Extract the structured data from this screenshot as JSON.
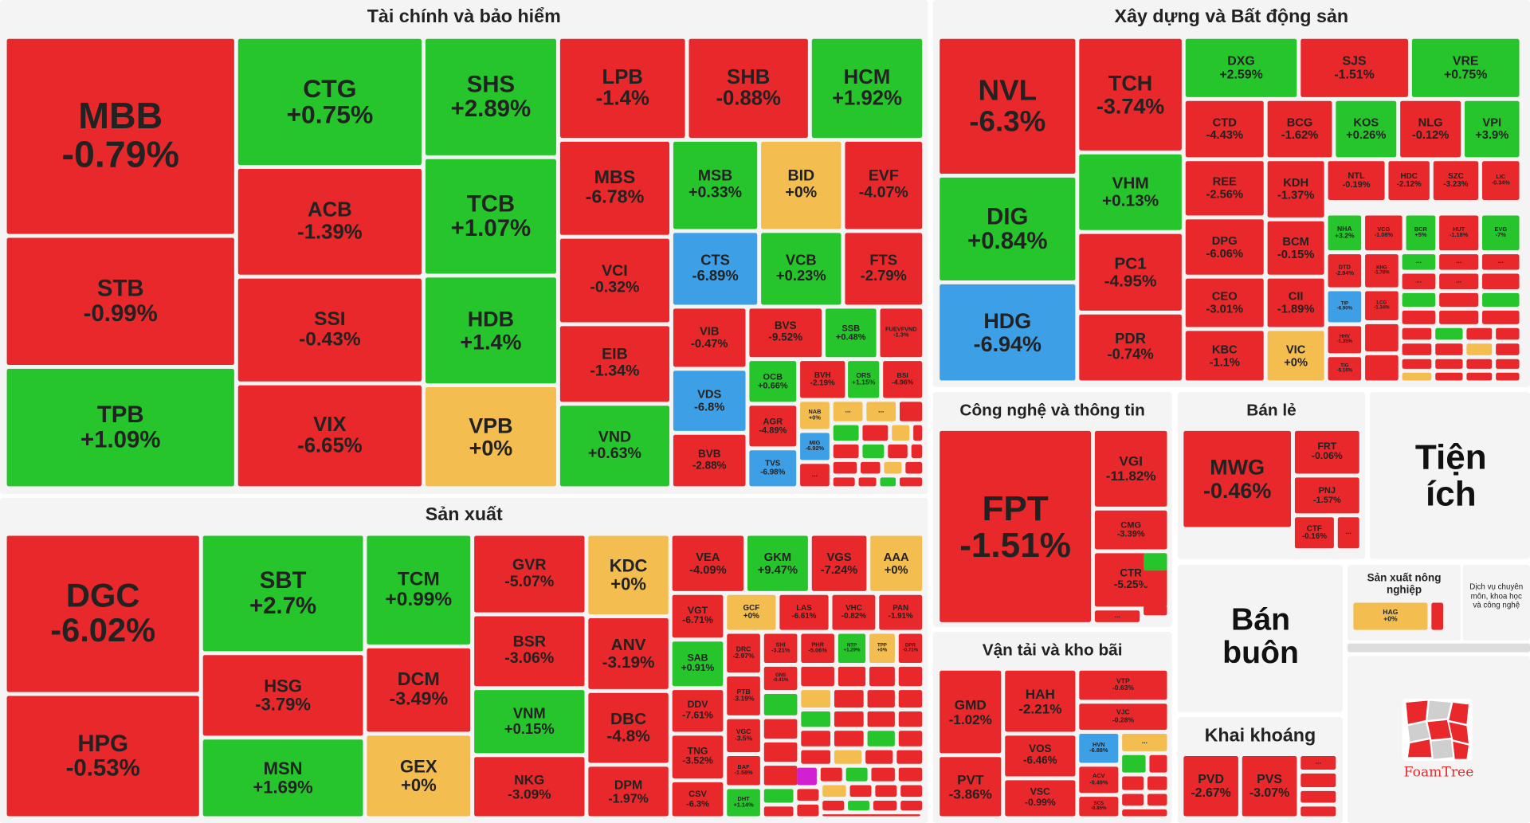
{
  "sectors": {
    "finance": "Tài chính và bảo hiểm",
    "construction": "Xây dựng và Bất động sản",
    "manufacturing": "Sản xuất",
    "tech": "Công nghệ và thông tin",
    "retail": "Bán lẻ",
    "utilities": "Tiện ích",
    "wholesale": "Bán buôn",
    "transport": "Vận tải và kho bãi",
    "mining": "Khai khoáng",
    "agriculture": "Sản xuất nông nghiệp",
    "professional": "Dịch vụ chuyên môn, khoa học và công nghệ"
  },
  "brand": {
    "logo_text": "FoamTree",
    "logo_color": "#e8282b"
  },
  "colors": {
    "down": "#e8282b",
    "up": "#26c52c",
    "flat": "#f3bd4f",
    "floor": "#3d9fe6",
    "ceiling": "#d21fd0"
  },
  "stocks": [
    {
      "t": "MBB",
      "c": "-0.79%"
    },
    {
      "t": "STB",
      "c": "-0.99%"
    },
    {
      "t": "TPB",
      "c": "+1.09%"
    },
    {
      "t": "CTG",
      "c": "+0.75%"
    },
    {
      "t": "ACB",
      "c": "-1.39%"
    },
    {
      "t": "SSI",
      "c": "-0.43%"
    },
    {
      "t": "VIX",
      "c": "-6.65%"
    },
    {
      "t": "SHS",
      "c": "+2.89%"
    },
    {
      "t": "TCB",
      "c": "+1.07%"
    },
    {
      "t": "HDB",
      "c": "+1.4%"
    },
    {
      "t": "VPB",
      "c": "+0%"
    },
    {
      "t": "LPB",
      "c": "-1.4%"
    },
    {
      "t": "SHB",
      "c": "-0.88%"
    },
    {
      "t": "HCM",
      "c": "+1.92%"
    },
    {
      "t": "MBS",
      "c": "-6.78%"
    },
    {
      "t": "VCI",
      "c": "-0.32%"
    },
    {
      "t": "EIB",
      "c": "-1.34%"
    },
    {
      "t": "VND",
      "c": "+0.63%"
    },
    {
      "t": "MSB",
      "c": "+0.33%"
    },
    {
      "t": "BID",
      "c": "+0%"
    },
    {
      "t": "EVF",
      "c": "-4.07%"
    },
    {
      "t": "CTS",
      "c": "-6.89%"
    },
    {
      "t": "VCB",
      "c": "+0.23%"
    },
    {
      "t": "FTS",
      "c": "-2.79%"
    },
    {
      "t": "VIB",
      "c": "-0.47%"
    },
    {
      "t": "BVS",
      "c": "-9.52%"
    },
    {
      "t": "SSB",
      "c": "+0.48%"
    },
    {
      "t": "FUEVFVND",
      "c": "-1.3%"
    },
    {
      "t": "VDS",
      "c": "-6.8%"
    },
    {
      "t": "BVB",
      "c": "-2.88%"
    },
    {
      "t": "OCB",
      "c": "+0.66%"
    },
    {
      "t": "BVH",
      "c": "-2.19%"
    },
    {
      "t": "ORS",
      "c": "+1.15%"
    },
    {
      "t": "BSI",
      "c": "-4.96%"
    },
    {
      "t": "AGR",
      "c": "-4.89%"
    },
    {
      "t": "NAB",
      "c": "+0%"
    },
    {
      "t": "MIG",
      "c": "-6.92%"
    },
    {
      "t": "TVS",
      "c": "-6.98%"
    },
    {
      "t": "NVL",
      "c": "-6.3%"
    },
    {
      "t": "DIG",
      "c": "+0.84%"
    },
    {
      "t": "HDG",
      "c": "-6.94%"
    },
    {
      "t": "TCH",
      "c": "-3.74%"
    },
    {
      "t": "VHM",
      "c": "+0.13%"
    },
    {
      "t": "PC1",
      "c": "-4.95%"
    },
    {
      "t": "PDR",
      "c": "-0.74%"
    },
    {
      "t": "DXG",
      "c": "+2.59%"
    },
    {
      "t": "SJS",
      "c": "-1.51%"
    },
    {
      "t": "VRE",
      "c": "+0.75%"
    },
    {
      "t": "CTD",
      "c": "-4.43%"
    },
    {
      "t": "BCG",
      "c": "-1.62%"
    },
    {
      "t": "KOS",
      "c": "+0.26%"
    },
    {
      "t": "NLG",
      "c": "-0.12%"
    },
    {
      "t": "VPI",
      "c": "+3.9%"
    },
    {
      "t": "REE",
      "c": "-2.56%"
    },
    {
      "t": "KDH",
      "c": "-1.37%"
    },
    {
      "t": "NTL",
      "c": "-0.19%"
    },
    {
      "t": "HDC",
      "c": "-2.12%"
    },
    {
      "t": "SZC",
      "c": "-3.23%"
    },
    {
      "t": "LIC",
      "c": "-0.34%"
    },
    {
      "t": "DPG",
      "c": "-6.06%"
    },
    {
      "t": "BCM",
      "c": "-0.15%"
    },
    {
      "t": "NHA",
      "c": "+3.2%"
    },
    {
      "t": "VCG",
      "c": "-1.08%"
    },
    {
      "t": "BCR",
      "c": "+5%"
    },
    {
      "t": "HUT",
      "c": "-1.18%"
    },
    {
      "t": "EVG",
      "c": "-7%"
    },
    {
      "t": "CEO",
      "c": "-3.01%"
    },
    {
      "t": "CII",
      "c": "-1.89%"
    },
    {
      "t": "DTD",
      "c": "-2.94%"
    },
    {
      "t": "KHG",
      "c": "-1.78%"
    },
    {
      "t": "LCG",
      "c": "-1.34%"
    },
    {
      "t": "KBC",
      "c": "-1.1%"
    },
    {
      "t": "VIC",
      "c": "+0%"
    },
    {
      "t": "TIP",
      "c": "-6.90%"
    },
    {
      "t": "HHV",
      "c": "-1.35%"
    },
    {
      "t": "TIG",
      "c": "-5.16%"
    },
    {
      "t": "DGC",
      "c": "-6.02%"
    },
    {
      "t": "HPG",
      "c": "-0.53%"
    },
    {
      "t": "SBT",
      "c": "+2.7%"
    },
    {
      "t": "HSG",
      "c": "-3.79%"
    },
    {
      "t": "MSN",
      "c": "+1.69%"
    },
    {
      "t": "TCM",
      "c": "+0.99%"
    },
    {
      "t": "DCM",
      "c": "-3.49%"
    },
    {
      "t": "GEX",
      "c": "+0%"
    },
    {
      "t": "GVR",
      "c": "-5.07%"
    },
    {
      "t": "BSR",
      "c": "-3.06%"
    },
    {
      "t": "VNM",
      "c": "+0.15%"
    },
    {
      "t": "NKG",
      "c": "-3.09%"
    },
    {
      "t": "KDC",
      "c": "+0%"
    },
    {
      "t": "ANV",
      "c": "-3.19%"
    },
    {
      "t": "DBC",
      "c": "-4.8%"
    },
    {
      "t": "DPM",
      "c": "-1.97%"
    },
    {
      "t": "VEA",
      "c": "-4.09%"
    },
    {
      "t": "GKM",
      "c": "+9.47%"
    },
    {
      "t": "VGS",
      "c": "-7.24%"
    },
    {
      "t": "AAA",
      "c": "+0%"
    },
    {
      "t": "VGT",
      "c": "-6.71%"
    },
    {
      "t": "GCF",
      "c": "+0%"
    },
    {
      "t": "LAS",
      "c": "-6.61%"
    },
    {
      "t": "VHC",
      "c": "-0.82%"
    },
    {
      "t": "PAN",
      "c": "-1.91%"
    },
    {
      "t": "SAB",
      "c": "+0.91%"
    },
    {
      "t": "DRC",
      "c": "-2.97%"
    },
    {
      "t": "SHI",
      "c": "-3.21%"
    },
    {
      "t": "PHR",
      "c": "-5.06%"
    },
    {
      "t": "NTP",
      "c": "+1.29%"
    },
    {
      "t": "TPP",
      "c": "+0%"
    },
    {
      "t": "DPR",
      "c": "-0.71%"
    },
    {
      "t": "DDV",
      "c": "-7.61%"
    },
    {
      "t": "PTB",
      "c": "-3.19%"
    },
    {
      "t": "GNS",
      "c": "-0.41%"
    },
    {
      "t": "VGC",
      "c": "-3.5%"
    },
    {
      "t": "TNG",
      "c": "-3.52%"
    },
    {
      "t": "BAF",
      "c": "-1.58%"
    },
    {
      "t": "CSV",
      "c": "-6.3%"
    },
    {
      "t": "DHT",
      "c": "+1.14%"
    },
    {
      "t": "FPT",
      "c": "-1.51%"
    },
    {
      "t": "VGI",
      "c": "-11.82%"
    },
    {
      "t": "CMG",
      "c": "-3.39%"
    },
    {
      "t": "CTR",
      "c": "-5.25%"
    },
    {
      "t": "GMD",
      "c": "-1.02%"
    },
    {
      "t": "PVT",
      "c": "-3.86%"
    },
    {
      "t": "HAH",
      "c": "-2.21%"
    },
    {
      "t": "VOS",
      "c": "-6.46%"
    },
    {
      "t": "VSC",
      "c": "-0.99%"
    },
    {
      "t": "VTP",
      "c": "-0.63%"
    },
    {
      "t": "VJC",
      "c": "-0.28%"
    },
    {
      "t": "HVN",
      "c": "-6.88%"
    },
    {
      "t": "ACV",
      "c": "-0.49%"
    },
    {
      "t": "SCS",
      "c": "-0.85%"
    },
    {
      "t": "MWG",
      "c": "-0.46%"
    },
    {
      "t": "FRT",
      "c": "-0.06%"
    },
    {
      "t": "PNJ",
      "c": "-1.57%"
    },
    {
      "t": "CTF",
      "c": "-0.16%"
    },
    {
      "t": "PVD",
      "c": "-2.67%"
    },
    {
      "t": "PVS",
      "c": "-3.07%"
    },
    {
      "t": "HAG",
      "c": "+0%"
    }
  ],
  "more_label": "..."
}
